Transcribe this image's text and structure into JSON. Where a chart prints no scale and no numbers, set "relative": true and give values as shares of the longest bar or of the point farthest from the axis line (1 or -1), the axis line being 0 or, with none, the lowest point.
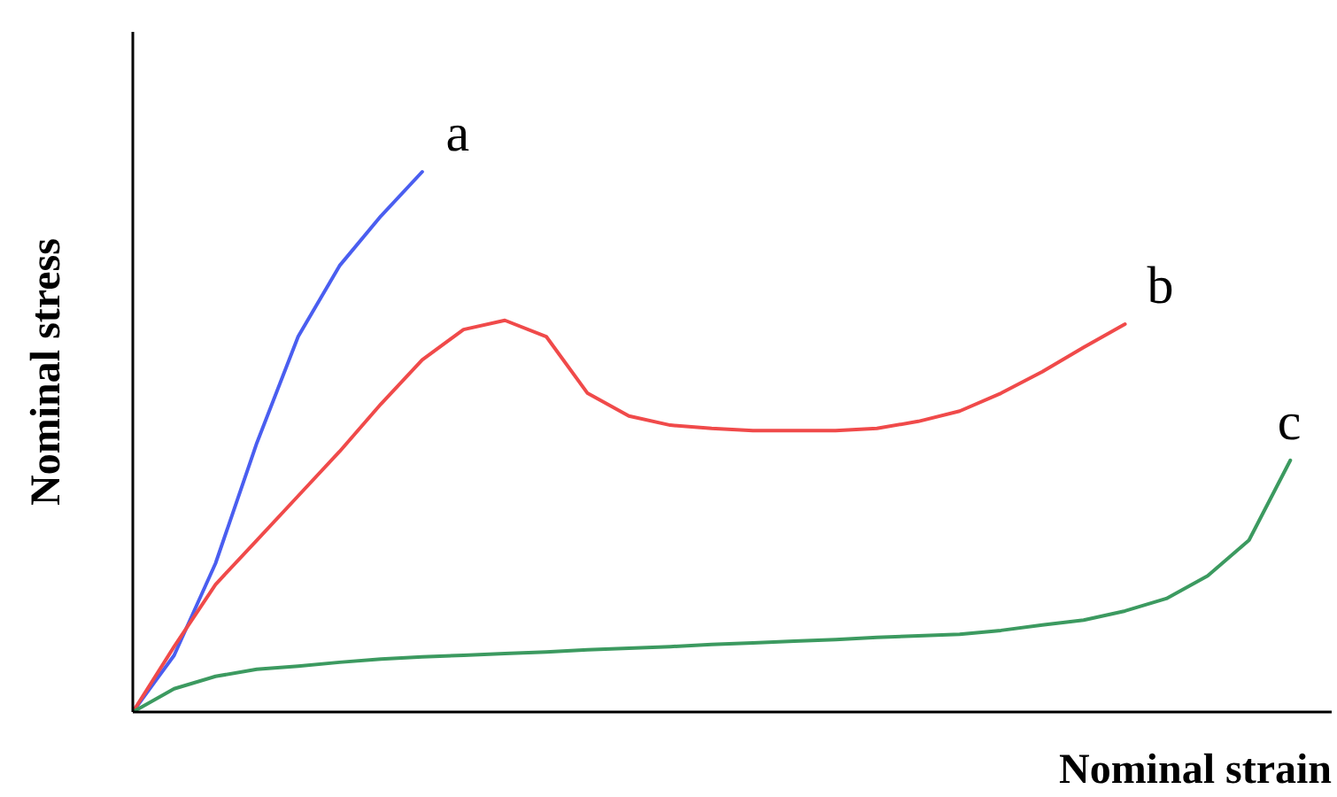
{
  "chart_data": {
    "type": "line",
    "relative": true,
    "xlabel": "Nominal strain",
    "ylabel": "Nominal stress",
    "marker": "none",
    "line_style": "solid",
    "grid": false,
    "legend": false,
    "categories": [
      null,
      null,
      null,
      null,
      null,
      null,
      null,
      null,
      null,
      null,
      null,
      null,
      null,
      null,
      null,
      null,
      null,
      null,
      null,
      null,
      null,
      null,
      null,
      null,
      null,
      null,
      null,
      null,
      null,
      null
    ],
    "series": [
      {
        "name": "a",
        "color": "#4a5ef0",
        "values": [
          0,
          0.105,
          0.275,
          0.498,
          0.695,
          0.826,
          0.918,
          1,
          null,
          null,
          null,
          null,
          null,
          null,
          null,
          null,
          null,
          null,
          null,
          null,
          null,
          null,
          null,
          null,
          null,
          null,
          null,
          null,
          null,
          null
        ]
      },
      {
        "name": "b",
        "color": "#f04a4a",
        "values": [
          0,
          0.121,
          0.236,
          0.318,
          0.4,
          0.482,
          0.57,
          0.652,
          0.708,
          0.725,
          0.695,
          0.59,
          0.548,
          0.531,
          0.525,
          0.521,
          0.521,
          0.521,
          0.525,
          0.538,
          0.557,
          0.59,
          0.63,
          0.675,
          0.718,
          null,
          null,
          null,
          null,
          null
        ]
      },
      {
        "name": "c",
        "color": "#3c9a60",
        "values": [
          0,
          0.043,
          0.066,
          0.079,
          0.085,
          0.092,
          0.098,
          0.102,
          0.105,
          0.108,
          0.111,
          0.115,
          0.118,
          0.121,
          0.125,
          0.128,
          0.131,
          0.134,
          0.138,
          0.141,
          0.144,
          0.151,
          0.161,
          0.17,
          0.187,
          0.21,
          0.252,
          0.318,
          0.466,
          null
        ]
      }
    ]
  }
}
